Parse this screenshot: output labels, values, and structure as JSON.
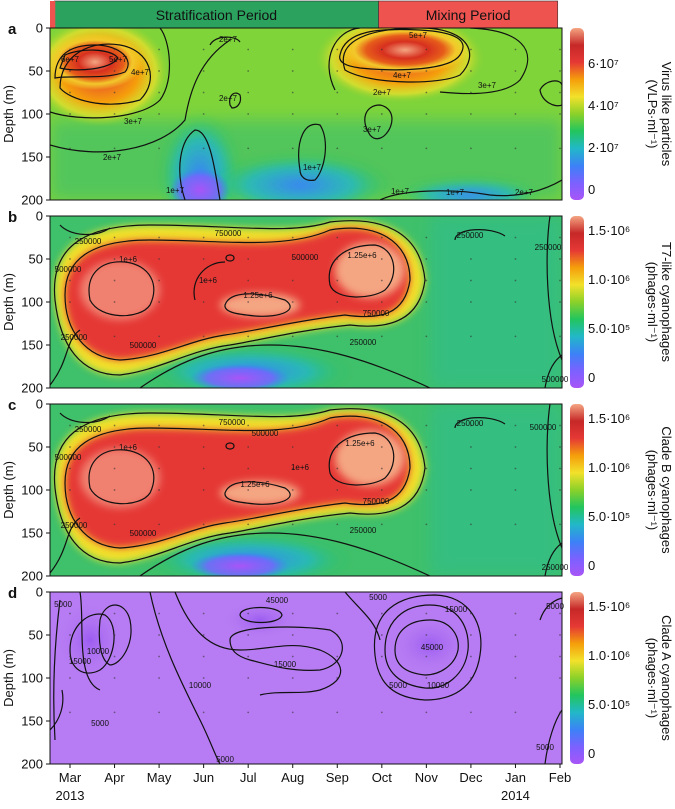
{
  "periods": [
    {
      "label": "Stratification Period",
      "color": "#2ca25f",
      "start": 0.1,
      "end": 7.7
    },
    {
      "label": "Mixing Period",
      "color": "#ef5350",
      "start": 7.7,
      "end": 11.9
    }
  ],
  "x_ticks": [
    "Mar",
    "Apr",
    "May",
    "Jun",
    "Jul",
    "Aug",
    "Sep",
    "Oct",
    "Nov",
    "Dec",
    "Jan",
    "Feb"
  ],
  "year_labels": [
    {
      "text": "2013",
      "at": 0
    },
    {
      "text": "2014",
      "at": 10
    }
  ],
  "y_label": "Depth (m)",
  "y_ticks": [
    "0",
    "50",
    "100",
    "150",
    "200"
  ],
  "colors": {
    "scale": [
      "#a855f7",
      "#7b61ff",
      "#3b82f6",
      "#22b8c8",
      "#22c55e",
      "#8bd12a",
      "#f2e12b",
      "#f59e0b",
      "#e53935",
      "#c62828",
      "#f4a582"
    ]
  },
  "panels": [
    {
      "letter": "a",
      "colorbar_label_line1": "Virus like particles",
      "colorbar_label_line2": "(VLPs·ml⁻¹)",
      "colorbar_ticks": [
        "6·10⁷",
        "4·10⁷",
        "2·10⁷",
        "0"
      ],
      "contour_labels": [
        "6e+7",
        "5e+7",
        "4e+7",
        "3e+7",
        "2e+7",
        "2e+7",
        "2e+7",
        "1e+7",
        "1e+7",
        "1e+7",
        "5e+7",
        "4e+7",
        "3e+7",
        "2e+7",
        "3e+7",
        "2e+7",
        "1e+7"
      ]
    },
    {
      "letter": "b",
      "colorbar_label_line1": "T7-like cyanophages",
      "colorbar_label_line2": "(phages·ml⁻¹)",
      "colorbar_ticks": [
        "1.5·10⁶",
        "1.0·10⁶",
        "5.0·10⁵",
        "0"
      ],
      "contour_labels": [
        "250000",
        "500000",
        "1e+6",
        "750000",
        "1e+6",
        "1.25e+6",
        "500000",
        "1.25e+6",
        "750000",
        "250000",
        "250000",
        "500000",
        "250000",
        "500000",
        "250000"
      ]
    },
    {
      "letter": "c",
      "colorbar_label_line1": "Clade B cyanophages",
      "colorbar_label_line2": "(phages·ml⁻¹)",
      "colorbar_ticks": [
        "1.5·10⁶",
        "1.0·10⁶",
        "5.0·10⁵",
        "0"
      ],
      "contour_labels": [
        "250000",
        "500000",
        "1e+6",
        "750000",
        "500000",
        "1.25e+6",
        "1e+6",
        "1.25e+6",
        "750000",
        "250000",
        "250000",
        "500000",
        "500000",
        "250000",
        "250000"
      ]
    },
    {
      "letter": "d",
      "colorbar_label_line1": "Clade A cyanophages",
      "colorbar_label_line2": "(phages·ml⁻¹)",
      "colorbar_ticks": [
        "1.5·10⁶",
        "1.0·10⁶",
        "5.0·10⁵",
        "0"
      ],
      "contour_labels": [
        "5000",
        "10000",
        "15000",
        "5000",
        "45000",
        "15000",
        "10000",
        "5000",
        "5000",
        "45000",
        "15000",
        "5000",
        "10000",
        "5000",
        "5000"
      ]
    }
  ],
  "chart_data": {
    "type": "heatmap",
    "x": [
      "Mar",
      "Apr",
      "May",
      "Jun",
      "Jul",
      "Aug",
      "Sep",
      "Oct",
      "Nov",
      "Dec",
      "Jan",
      "Feb"
    ],
    "y_depth_m": [
      0,
      50,
      100,
      150,
      200
    ],
    "ylabel": "Depth (m)",
    "ylim": [
      200,
      0
    ],
    "series": [
      {
        "name": "Virus like particles",
        "unit": "VLPs·ml⁻¹",
        "colorbar_range": [
          0,
          70000000
        ],
        "hotspots": [
          {
            "month": 0.5,
            "depth": 40,
            "value": 60000000
          },
          {
            "month": 7.8,
            "depth": 35,
            "value": 55000000
          },
          {
            "month": 4.0,
            "depth": 80,
            "value": 25000000
          },
          {
            "month": 7.0,
            "depth": 90,
            "value": 30000000
          }
        ]
      },
      {
        "name": "T7-like cyanophages",
        "unit": "phages·ml⁻¹",
        "colorbar_range": [
          0,
          1500000
        ],
        "hotspots": [
          {
            "month": 1.5,
            "depth": 65,
            "value": 1000000
          },
          {
            "month": 4.5,
            "depth": 95,
            "value": 1250000
          },
          {
            "month": 7.3,
            "depth": 60,
            "value": 1300000
          },
          {
            "month": 3.8,
            "depth": 40,
            "value": 1000000
          }
        ]
      },
      {
        "name": "Clade B cyanophages",
        "unit": "phages·ml⁻¹",
        "colorbar_range": [
          0,
          1500000
        ],
        "hotspots": [
          {
            "month": 1.5,
            "depth": 65,
            "value": 1000000
          },
          {
            "month": 4.5,
            "depth": 95,
            "value": 1250000
          },
          {
            "month": 7.3,
            "depth": 60,
            "value": 1300000
          },
          {
            "month": 3.8,
            "depth": 40,
            "value": 1000000
          }
        ]
      },
      {
        "name": "Clade A cyanophages",
        "unit": "phages·ml⁻¹",
        "colorbar_range": [
          0,
          1500000
        ],
        "hotspots": [
          {
            "month": 4.8,
            "depth": 20,
            "value": 45000
          },
          {
            "month": 7.8,
            "depth": 55,
            "value": 45000
          },
          {
            "month": 0.9,
            "depth": 50,
            "value": 15000
          },
          {
            "month": 5.5,
            "depth": 70,
            "value": 15000
          }
        ]
      }
    ]
  }
}
